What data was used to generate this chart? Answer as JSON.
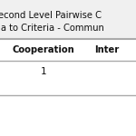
{
  "title_line1": "econd Level Pairwise C",
  "title_line2": "ia to Criteria - Commun",
  "col_headers": [
    "Cooperation",
    "Inter"
  ],
  "row_data": [
    [
      "1",
      ""
    ]
  ],
  "background_color": "#f0f0f0",
  "title_bg_color": "#f0f0f0",
  "table_bg_color": "#ffffff",
  "title_fontsize": 7.2,
  "header_fontsize": 7.2,
  "cell_fontsize": 7.5,
  "line_color": "#aaaaaa"
}
